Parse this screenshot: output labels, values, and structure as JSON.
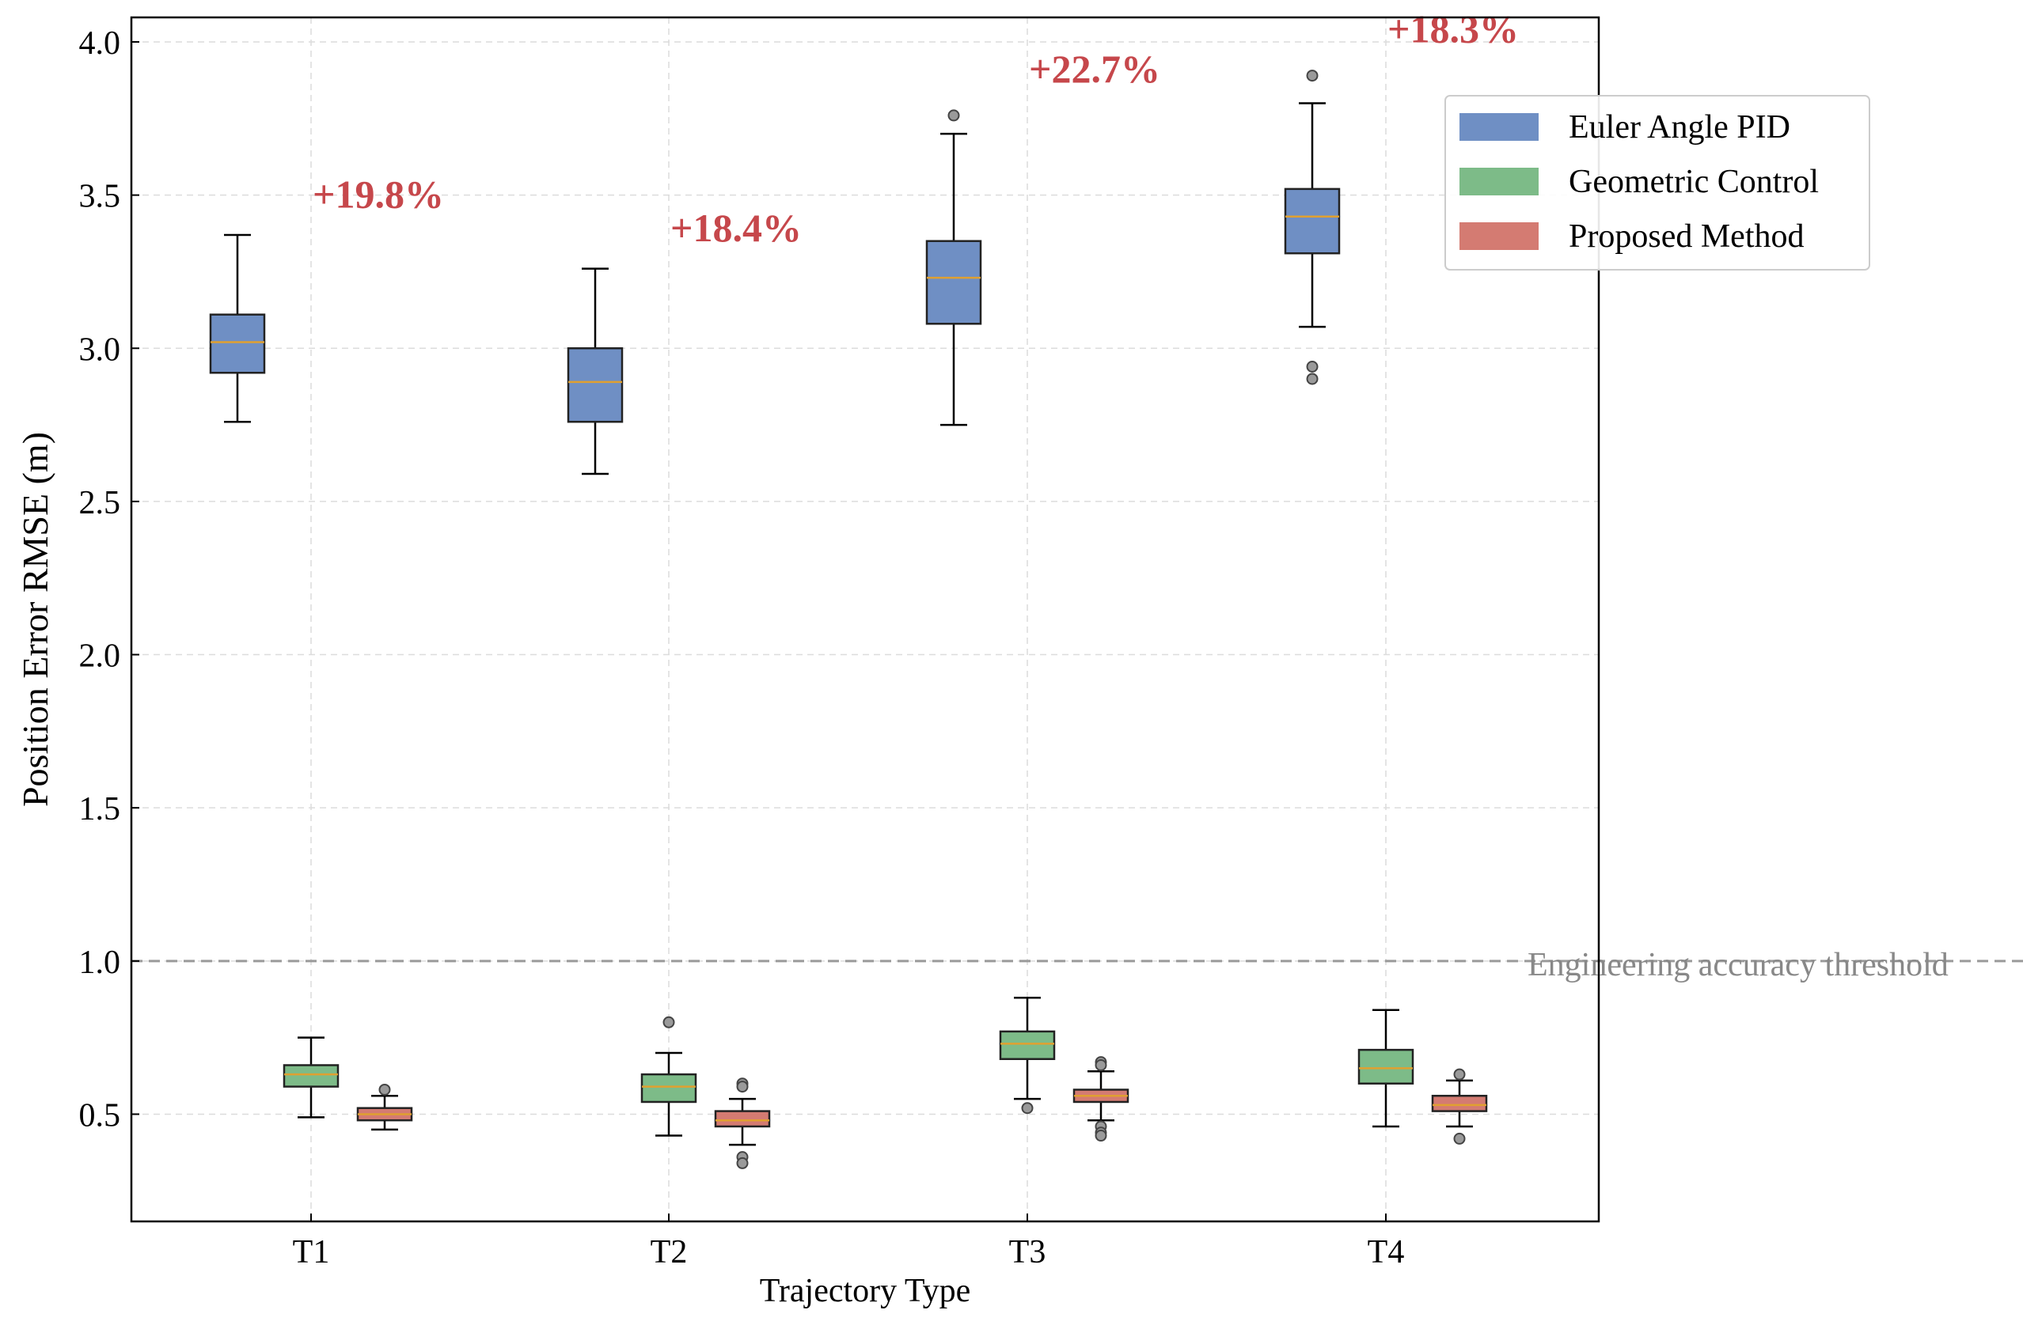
{
  "chart_data": {
    "type": "box",
    "title": "",
    "xlabel": "Trajectory Type",
    "ylabel": "Position Error RMSE (m)",
    "categories": [
      "T1",
      "T2",
      "T3",
      "T4"
    ],
    "ylim": [
      0.15,
      4.08
    ],
    "yticks": [
      0.5,
      1.0,
      1.5,
      2.0,
      2.5,
      3.0,
      3.5,
      4.0
    ],
    "ytick_labels": [
      "0.5",
      "1.0",
      "1.5",
      "2.0",
      "2.5",
      "3.0",
      "3.5",
      "4.0"
    ],
    "grid": true,
    "legend_position": "top-right",
    "series": [
      {
        "name": "Euler Angle PID",
        "color": "#6f8fc4",
        "boxes": [
          {
            "category": "T1",
            "whisker_low": 2.76,
            "q1": 2.92,
            "median": 3.02,
            "q3": 3.11,
            "whisker_high": 3.37,
            "outliers": []
          },
          {
            "category": "T2",
            "whisker_low": 2.59,
            "q1": 2.76,
            "median": 2.89,
            "q3": 3.0,
            "whisker_high": 3.26,
            "outliers": []
          },
          {
            "category": "T3",
            "whisker_low": 2.75,
            "q1": 3.08,
            "median": 3.23,
            "q3": 3.35,
            "whisker_high": 3.7,
            "outliers": [
              3.76
            ]
          },
          {
            "category": "T4",
            "whisker_low": 3.07,
            "q1": 3.31,
            "median": 3.43,
            "q3": 3.52,
            "whisker_high": 3.8,
            "outliers": [
              3.89,
              2.94,
              2.9
            ]
          }
        ]
      },
      {
        "name": "Geometric Control",
        "color": "#7dbb88",
        "boxes": [
          {
            "category": "T1",
            "whisker_low": 0.49,
            "q1": 0.59,
            "median": 0.63,
            "q3": 0.66,
            "whisker_high": 0.75,
            "outliers": []
          },
          {
            "category": "T2",
            "whisker_low": 0.43,
            "q1": 0.54,
            "median": 0.59,
            "q3": 0.63,
            "whisker_high": 0.7,
            "outliers": [
              0.8
            ]
          },
          {
            "category": "T3",
            "whisker_low": 0.55,
            "q1": 0.68,
            "median": 0.73,
            "q3": 0.77,
            "whisker_high": 0.88,
            "outliers": [
              0.52
            ]
          },
          {
            "category": "T4",
            "whisker_low": 0.46,
            "q1": 0.6,
            "median": 0.65,
            "q3": 0.71,
            "whisker_high": 0.84,
            "outliers": []
          }
        ]
      },
      {
        "name": "Proposed Method",
        "color": "#d47b72",
        "boxes": [
          {
            "category": "T1",
            "whisker_low": 0.45,
            "q1": 0.48,
            "median": 0.5,
            "q3": 0.52,
            "whisker_high": 0.56,
            "outliers": [
              0.58
            ]
          },
          {
            "category": "T2",
            "whisker_low": 0.4,
            "q1": 0.46,
            "median": 0.48,
            "q3": 0.51,
            "whisker_high": 0.55,
            "outliers": [
              0.6,
              0.59,
              0.36,
              0.34
            ]
          },
          {
            "category": "T3",
            "whisker_low": 0.48,
            "q1": 0.54,
            "median": 0.56,
            "q3": 0.58,
            "whisker_high": 0.64,
            "outliers": [
              0.67,
              0.66,
              0.46,
              0.44,
              0.43
            ]
          },
          {
            "category": "T4",
            "whisker_low": 0.46,
            "q1": 0.51,
            "median": 0.53,
            "q3": 0.56,
            "whisker_high": 0.61,
            "outliers": [
              0.63,
              0.42
            ]
          }
        ]
      }
    ],
    "annotations": [
      {
        "category": "T1",
        "text": "+19.8%",
        "y": 3.5
      },
      {
        "category": "T2",
        "text": "+18.4%",
        "y": 3.39
      },
      {
        "category": "T3",
        "text": "+22.7%",
        "y": 3.91
      },
      {
        "category": "T4",
        "text": "+18.3%",
        "y": 4.04
      }
    ],
    "annotation_color": "#c6474b",
    "reference_line": {
      "y": 1.0,
      "label": "Engineering accuracy threshold",
      "color": "#9a9a9a"
    },
    "median_color": "#e0a030"
  }
}
